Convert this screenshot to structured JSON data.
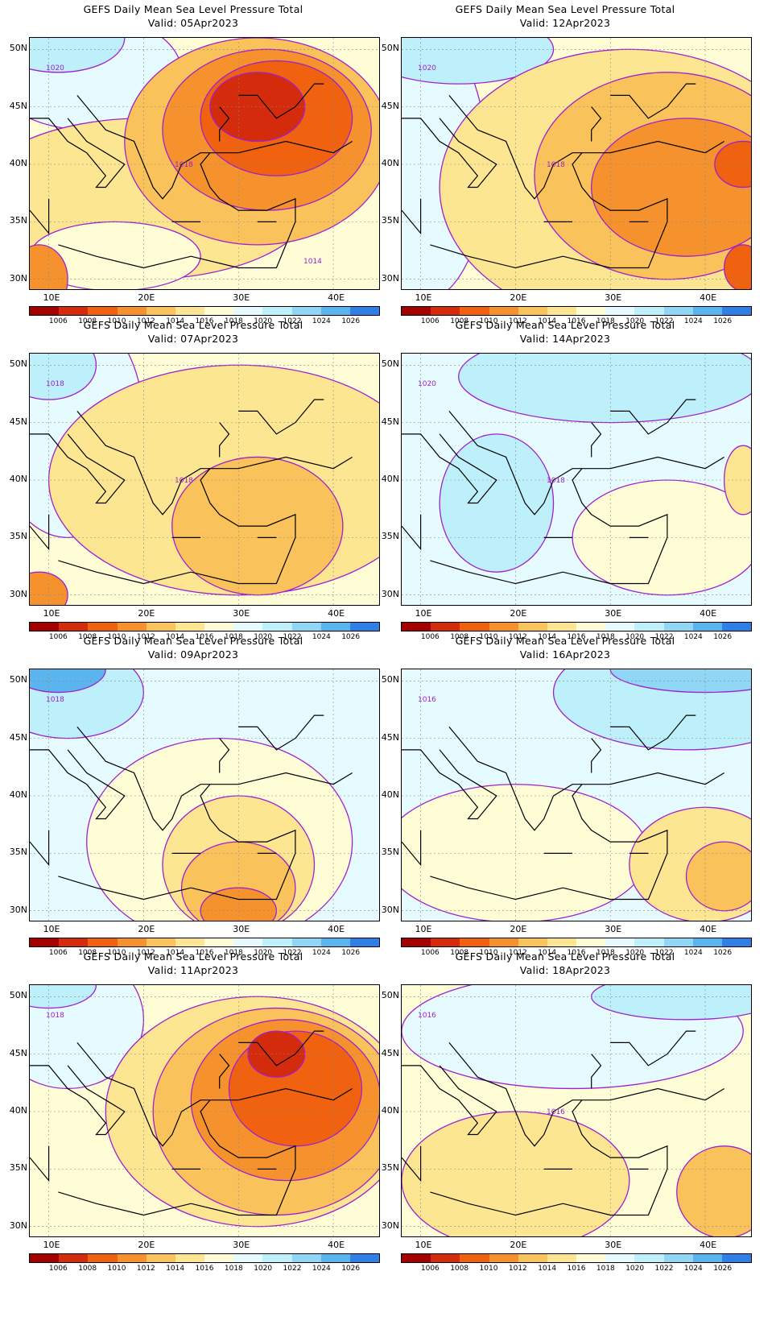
{
  "panels": [
    {
      "title": "GEFS Daily Mean Sea Level Pressure Total",
      "valid": "Valid:  05Apr2023",
      "isobar_labels": [
        "1020",
        "1018",
        "1014"
      ],
      "scene": "deep_low"
    },
    {
      "title": "GEFS Daily Mean Sea Level Pressure Total",
      "valid": "Valid:  12Apr2023",
      "isobar_labels": [
        "1020",
        "1018"
      ],
      "scene": "broad_low"
    },
    {
      "title": "GEFS Daily Mean Sea Level Pressure Total",
      "valid": "Valid:  07Apr2023",
      "isobar_labels": [
        "1018",
        "1018"
      ],
      "scene": "mild_low"
    },
    {
      "title": "GEFS Daily Mean Sea Level Pressure Total",
      "valid": "Valid:  14Apr2023",
      "isobar_labels": [
        "1020",
        "1018"
      ],
      "scene": "high"
    },
    {
      "title": "GEFS Daily Mean Sea Level Pressure Total",
      "valid": "Valid:  09Apr2023",
      "isobar_labels": [
        "1018"
      ],
      "scene": "south_low"
    },
    {
      "title": "GEFS Daily Mean Sea Level Pressure Total",
      "valid": "Valid:  16Apr2023",
      "isobar_labels": [
        "1016"
      ],
      "scene": "high2"
    },
    {
      "title": "GEFS Daily Mean Sea Level Pressure Total",
      "valid": "Valid:  11Apr2023",
      "isobar_labels": [
        "1018"
      ],
      "scene": "deep_low2"
    },
    {
      "title": "GEFS Daily Mean Sea Level Pressure Total",
      "valid": "Valid:  18Apr2023",
      "isobar_labels": [
        "1016",
        "1016"
      ],
      "scene": "weak"
    }
  ],
  "lat_labels": [
    "50N",
    "45N",
    "40N",
    "35N",
    "30N"
  ],
  "lon_labels": [
    "10E",
    "20E",
    "30E",
    "40E"
  ],
  "colorbar": {
    "levels": [
      "1006",
      "1008",
      "1010",
      "1012",
      "1014",
      "1016",
      "1018",
      "1020",
      "1022",
      "1024",
      "1026"
    ],
    "colors": [
      "#a50000",
      "#d42b0c",
      "#f0620f",
      "#f5922e",
      "#fac25a",
      "#fde692",
      "#fffdd6",
      "#e6fbff",
      "#bdf0fa",
      "#90d7f5",
      "#5ab4ee",
      "#2f80e6"
    ]
  },
  "styles": {
    "isobar_color": "#a020d0",
    "coast_color": "#000000"
  }
}
